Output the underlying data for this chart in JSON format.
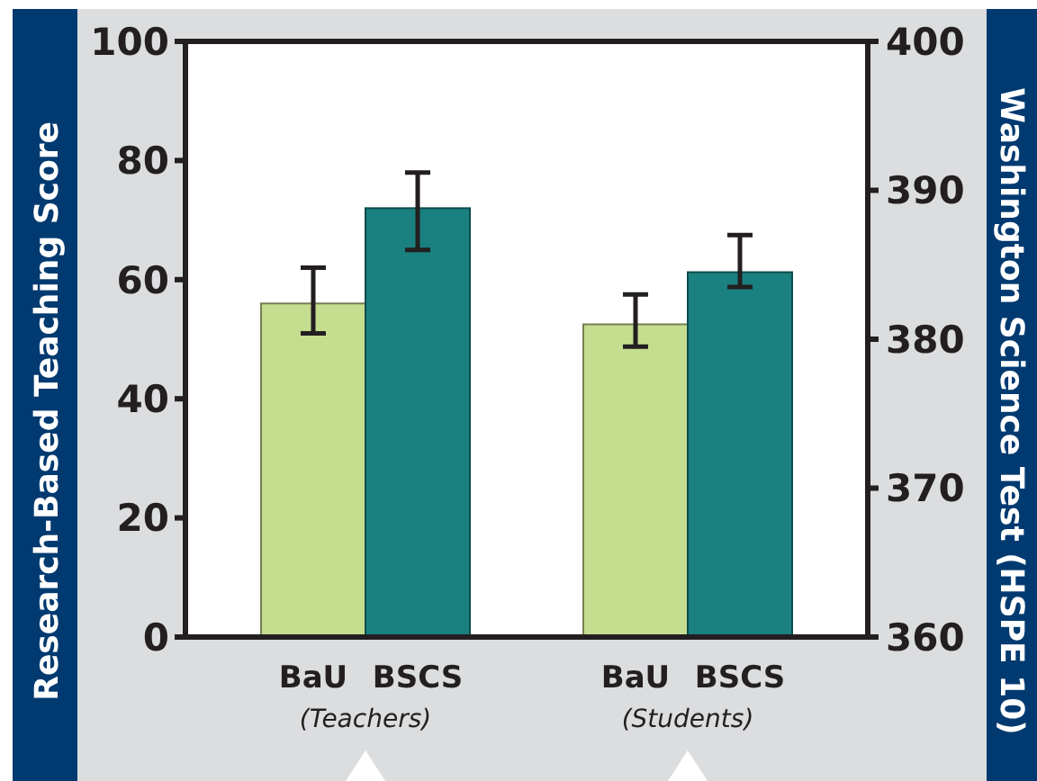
{
  "chart_data": {
    "type": "bar",
    "categories": [
      "BaU",
      "BSCS",
      "BaU",
      "BSCS"
    ],
    "series": [
      {
        "axis": "y",
        "values": [
          56,
          72,
          null,
          null
        ],
        "colors": [
          "#c5dd8f",
          "#1a8080",
          null,
          null
        ],
        "errors": [
          [
            51,
            62
          ],
          [
            65,
            78
          ],
          null,
          null
        ]
      },
      {
        "axis": "y2",
        "values": [
          null,
          null,
          381,
          384.5
        ],
        "colors": [
          null,
          null,
          "#c5dd8f",
          "#1a8080"
        ],
        "errors": [
          null,
          null,
          [
            379.5,
            383
          ],
          [
            383.5,
            387
          ]
        ]
      }
    ],
    "ylabel": "Research-Based Teaching Score",
    "y2label": "Washington Science Test (HSPE 10)",
    "ylim": [
      0,
      100
    ],
    "yticks": [
      0,
      20,
      40,
      60,
      80,
      100
    ],
    "y2lim": [
      360,
      400
    ],
    "y2ticks": [
      360,
      370,
      380,
      390,
      400
    ],
    "annotations": [
      "(Teachers)",
      "(Students)"
    ],
    "grid": false
  }
}
